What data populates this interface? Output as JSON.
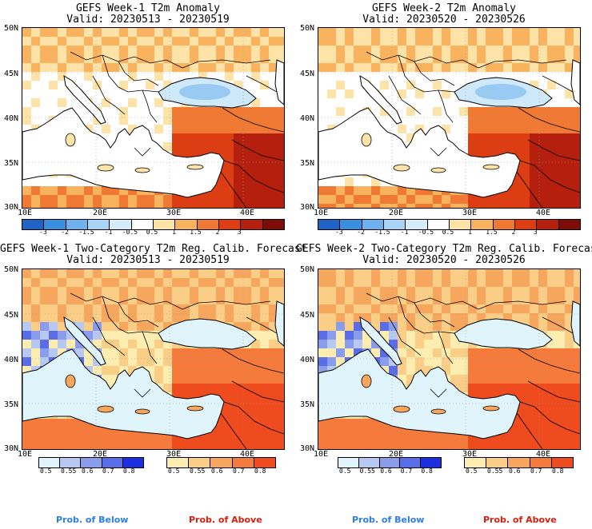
{
  "panels": [
    {
      "title": "GEFS Week-1 T2m Anomaly",
      "valid": "Valid: 20230513 - 20230519",
      "kind": "anomaly"
    },
    {
      "title": "GEFS Week-2 T2m Anomaly",
      "valid": "Valid: 20230520 - 20230526",
      "kind": "anomaly"
    },
    {
      "title": "GEFS Week-1 Two-Category T2m Reg. Calib. Forecast",
      "valid": "Valid: 20230513 - 20230519",
      "kind": "prob"
    },
    {
      "title": "GEFS Week-2 Two-Category T2m Reg. Calib. Forecast",
      "valid": "Valid: 20230520 - 20230526",
      "kind": "prob"
    }
  ],
  "axes": {
    "lat_labels": [
      "50N",
      "45N",
      "40N",
      "35N",
      "30N"
    ],
    "lon_labels": [
      "10E",
      "20E",
      "30E",
      "40E"
    ]
  },
  "anomaly_scale": {
    "labels": [
      "-3",
      "-2",
      "-1.5",
      "-1",
      "-0.5",
      "0.5",
      "1",
      "1.5",
      "2",
      "3"
    ],
    "colors": [
      "#1f63c6",
      "#3a8ee0",
      "#6fb1ee",
      "#a9d4f6",
      "#d7ecfb",
      "#ffffff",
      "#fde3a7",
      "#f9b35f",
      "#f07a33",
      "#dc3d13",
      "#b4200d",
      "#7e0c08"
    ]
  },
  "below_scale": {
    "labels": [
      "0.5",
      "0.55",
      "0.6",
      "0.7",
      "0.8"
    ],
    "colors": [
      "#e0f5fb",
      "#b7c8f2",
      "#8a9ded",
      "#5a6de8",
      "#1d2ee0"
    ]
  },
  "above_scale": {
    "labels": [
      "0.5",
      "0.55",
      "0.6",
      "0.7",
      "0.8"
    ],
    "colors": [
      "#fdedb0",
      "#fbce88",
      "#f7a65e",
      "#f47b3c",
      "#ee4b1e"
    ]
  },
  "prob_labels": {
    "below": "Prob. of Below",
    "above": "Prob. of Above"
  },
  "colors": {
    "below_label": "#2f7de0",
    "above_label": "#d3200f"
  }
}
